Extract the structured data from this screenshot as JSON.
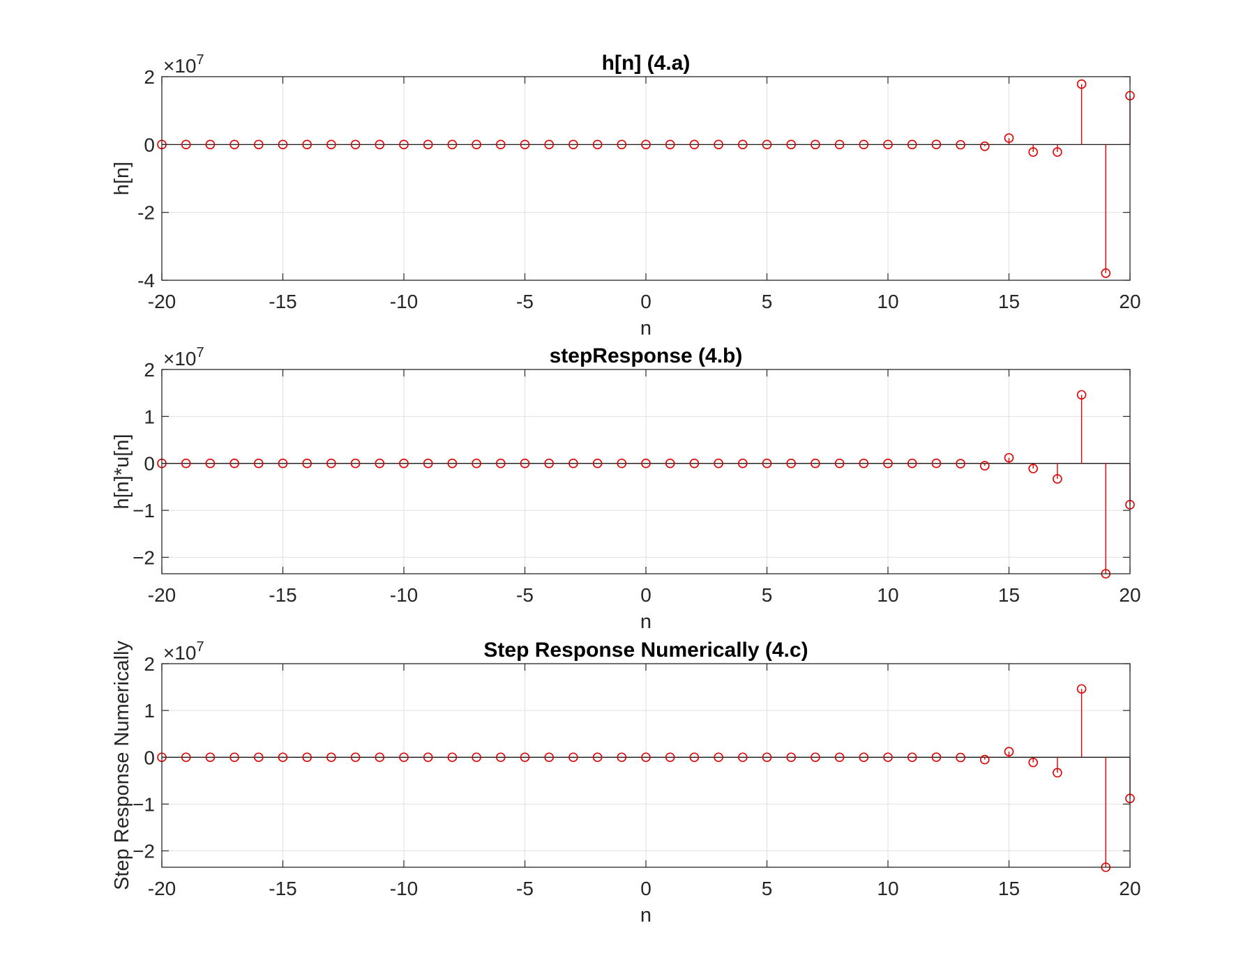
{
  "chart_data": [
    {
      "type": "stem",
      "title": "h[n] (4.a)",
      "xlabel": "n",
      "ylabel": "h[n]",
      "y_exponent_label": "×10",
      "y_exponent_power": "7",
      "xlim": [
        -20,
        20
      ],
      "ylim": [
        -40000000,
        20000000
      ],
      "xticks": [
        -20,
        -15,
        -10,
        -5,
        0,
        5,
        10,
        15,
        20
      ],
      "yticks": [
        -40000000,
        -20000000,
        0,
        20000000
      ],
      "ytick_labels": [
        "-4",
        "-2",
        "0",
        "2"
      ],
      "xtick_labels": [
        "-20",
        "-15",
        "-10",
        "-5",
        "0",
        "5",
        "10",
        "15",
        "20"
      ],
      "grid": true,
      "color": "#e00000",
      "x": [
        -20,
        -19,
        -18,
        -17,
        -16,
        -15,
        -14,
        -13,
        -12,
        -11,
        -10,
        -9,
        -8,
        -7,
        -6,
        -5,
        -4,
        -3,
        -2,
        -1,
        0,
        1,
        2,
        3,
        4,
        5,
        6,
        7,
        8,
        9,
        10,
        11,
        12,
        13,
        14,
        15,
        16,
        17,
        18,
        19,
        20
      ],
      "y": [
        0,
        0,
        0,
        0,
        0,
        0,
        0,
        0,
        0,
        0,
        0,
        0,
        0,
        0,
        0,
        0,
        0,
        0,
        0,
        0,
        0,
        0,
        0,
        0,
        0,
        0,
        0,
        0,
        0,
        0,
        0,
        0,
        30000,
        -60000,
        -500000,
        1900000,
        -2200000,
        -2200000,
        17800000,
        -37900000,
        14400000
      ]
    },
    {
      "type": "stem",
      "title": "stepResponse (4.b)",
      "xlabel": "n",
      "ylabel": "h[n]*u[n]",
      "y_exponent_label": "×10",
      "y_exponent_power": "7",
      "xlim": [
        -20,
        20
      ],
      "ylim": [
        -23500000,
        20000000
      ],
      "xticks": [
        -20,
        -15,
        -10,
        -5,
        0,
        5,
        10,
        15,
        20
      ],
      "yticks": [
        -20000000,
        -10000000,
        0,
        10000000,
        20000000
      ],
      "ytick_labels": [
        "−2",
        "−1",
        "0",
        "1",
        "2"
      ],
      "xtick_labels": [
        "-20",
        "-15",
        "-10",
        "-5",
        "0",
        "5",
        "10",
        "15",
        "20"
      ],
      "grid": true,
      "color": "#e00000",
      "x": [
        -20,
        -19,
        -18,
        -17,
        -16,
        -15,
        -14,
        -13,
        -12,
        -11,
        -10,
        -9,
        -8,
        -7,
        -6,
        -5,
        -4,
        -3,
        -2,
        -1,
        0,
        1,
        2,
        3,
        4,
        5,
        6,
        7,
        8,
        9,
        10,
        11,
        12,
        13,
        14,
        15,
        16,
        17,
        18,
        19,
        20
      ],
      "y": [
        0,
        0,
        0,
        0,
        0,
        0,
        0,
        0,
        0,
        0,
        0,
        0,
        0,
        0,
        0,
        0,
        0,
        0,
        0,
        0,
        0,
        0,
        0,
        0,
        0,
        0,
        0,
        0,
        0,
        0,
        0,
        0,
        20000,
        -50000,
        -500000,
        1200000,
        -1100000,
        -3300000,
        14600000,
        -23500000,
        -8800000
      ]
    },
    {
      "type": "stem",
      "title": "Step Response Numerically (4.c)",
      "xlabel": "n",
      "ylabel": "Step Response Numerically",
      "y_exponent_label": "×10",
      "y_exponent_power": "7",
      "xlim": [
        -20,
        20
      ],
      "ylim": [
        -23500000,
        20000000
      ],
      "xticks": [
        -20,
        -15,
        -10,
        -5,
        0,
        5,
        10,
        15,
        20
      ],
      "yticks": [
        -20000000,
        -10000000,
        0,
        10000000,
        20000000
      ],
      "ytick_labels": [
        "−2",
        "−1",
        "0",
        "1",
        "2"
      ],
      "xtick_labels": [
        "-20",
        "-15",
        "-10",
        "-5",
        "0",
        "5",
        "10",
        "15",
        "20"
      ],
      "grid": true,
      "color": "#e00000",
      "x": [
        -20,
        -19,
        -18,
        -17,
        -16,
        -15,
        -14,
        -13,
        -12,
        -11,
        -10,
        -9,
        -8,
        -7,
        -6,
        -5,
        -4,
        -3,
        -2,
        -1,
        0,
        1,
        2,
        3,
        4,
        5,
        6,
        7,
        8,
        9,
        10,
        11,
        12,
        13,
        14,
        15,
        16,
        17,
        18,
        19,
        20
      ],
      "y": [
        0,
        0,
        0,
        0,
        0,
        0,
        0,
        0,
        0,
        0,
        0,
        0,
        0,
        0,
        0,
        0,
        0,
        0,
        0,
        0,
        0,
        0,
        0,
        0,
        0,
        0,
        0,
        0,
        0,
        0,
        0,
        0,
        20000,
        -50000,
        -500000,
        1200000,
        -1100000,
        -3300000,
        14600000,
        -23500000,
        -8800000
      ]
    }
  ]
}
